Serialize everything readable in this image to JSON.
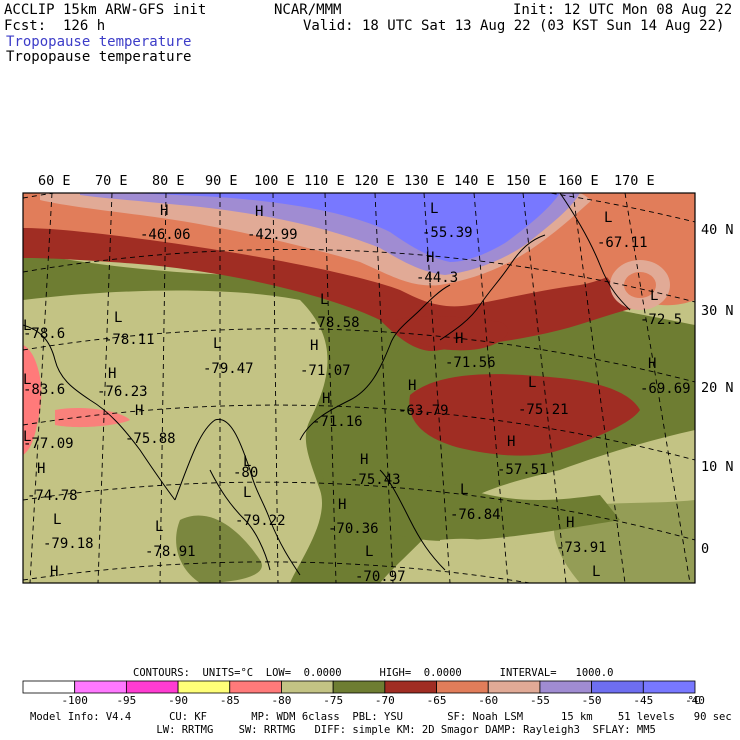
{
  "header": {
    "model": "ACCLIP 15km ARW-GFS init",
    "org": "NCAR/MMM",
    "init": "Init: 12 UTC Mon 08 Aug 22",
    "fcst": "Fcst:  126 h",
    "valid": "Valid: 18 UTC Sat 13 Aug 22 (03 KST Sun 14 Aug 22)",
    "field_colored": "Tropopause temperature",
    "field_black": "Tropopause temperature"
  },
  "axes": {
    "lon_labels": [
      "60 E",
      "70 E",
      "80 E",
      "90 E",
      "100 E",
      "110 E",
      "120 E",
      "130 E",
      "140 E",
      "150 E",
      "160 E",
      "170 E"
    ],
    "lat_labels": [
      "40 N",
      "30 N",
      "20 N",
      "10 N",
      "0"
    ]
  },
  "centers": [
    {
      "kind": "H",
      "value": "-46.06"
    },
    {
      "kind": "H",
      "value": "-42.99"
    },
    {
      "kind": "L",
      "value": "-55.39"
    },
    {
      "kind": "L",
      "value": "-67.11"
    },
    {
      "kind": "H",
      "value": "-44.3"
    },
    {
      "kind": "L",
      "value": "-72.5"
    },
    {
      "kind": "L",
      "value": "-78.58"
    },
    {
      "kind": "L",
      "value": "-78.11"
    },
    {
      "kind": "L",
      "value": "-78.6"
    },
    {
      "kind": "L",
      "value": "-79.47"
    },
    {
      "kind": "H",
      "value": "-71.07"
    },
    {
      "kind": "H",
      "value": "-71.56"
    },
    {
      "kind": "H",
      "value": "-69.69"
    },
    {
      "kind": "H",
      "value": "-76.23"
    },
    {
      "kind": "L",
      "value": "-83.6"
    },
    {
      "kind": "H",
      "value": "-63.79"
    },
    {
      "kind": "L",
      "value": "-75.21"
    },
    {
      "kind": "H",
      "value": "-71.16"
    },
    {
      "kind": "H",
      "value": "-75.88"
    },
    {
      "kind": "L",
      "value": "-77.09"
    },
    {
      "kind": "H",
      "value": "-57.51"
    },
    {
      "kind": "L",
      "value": "-80"
    },
    {
      "kind": "H",
      "value": "-75.43"
    },
    {
      "kind": "H",
      "value": "-74.78"
    },
    {
      "kind": "L",
      "value": "-79.22"
    },
    {
      "kind": "L",
      "value": "-76.84"
    },
    {
      "kind": "H",
      "value": "-70.36"
    },
    {
      "kind": "H",
      "value": "-73.91"
    },
    {
      "kind": "L",
      "value": "-79.18"
    },
    {
      "kind": "L",
      "value": "-78.91"
    },
    {
      "kind": "L",
      "value": "-70.97"
    },
    {
      "kind": "H",
      "value": ""
    },
    {
      "kind": "L",
      "value": ""
    }
  ],
  "contours": {
    "line": "CONTOURS:  UNITS=°C  LOW=  0.0000      HIGH=  0.0000      INTERVAL=   1000.0"
  },
  "colorbar": {
    "ticks": [
      "-100",
      "-95",
      "-90",
      "-85",
      "-80",
      "-75",
      "-70",
      "-65",
      "-60",
      "-55",
      "-50",
      "-45",
      "-40"
    ],
    "unit": "°C",
    "colors": [
      "#ffffff",
      "#ff78ff",
      "#ff3cd2",
      "#ffff78",
      "#ff7a7a",
      "#c3c384",
      "#6e7d32",
      "#a02d23",
      "#e17d5a",
      "#e1aa96",
      "#a08cd2",
      "#6e6ef0",
      "#7878ff"
    ]
  },
  "footer": {
    "line1": "Model Info: V4.4      CU: KF       MP: WDM 6class  PBL: YSU       SF: Noah LSM      15 km    51 levels   90 sec",
    "line2": "                    LW: RRTMG    SW: RRTMG   DIFF: simple KM: 2D Smagor DAMP: Rayleigh3  SFLAY: MM5"
  },
  "colors": {
    "field_label_blue": "#3c3cc8",
    "land_tan": "#c3c384",
    "olive": "#6e7d32",
    "red": "#a02d23",
    "salmon": "#e17d5a",
    "pink_light": "#e1aa96",
    "purple": "#a08cd2",
    "blue": "#7878ff",
    "hot_pink": "#ff7a7a"
  }
}
